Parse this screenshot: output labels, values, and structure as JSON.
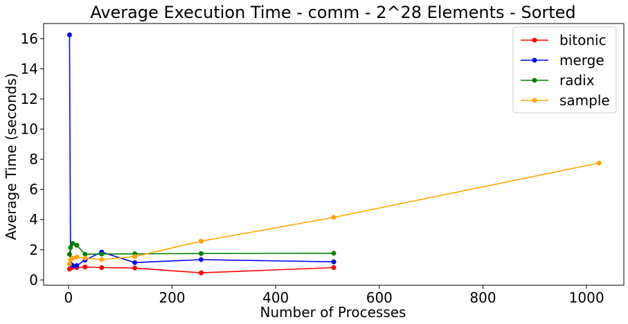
{
  "chart_data": {
    "type": "line",
    "title": "Average Execution Time - comm - 2^28 Elements - Sorted",
    "xlabel": "Number of Processes",
    "ylabel": "Average Time (seconds)",
    "xlim": [
      -48,
      1072
    ],
    "ylim": [
      -0.35,
      17.0
    ],
    "xticks": [
      0,
      200,
      400,
      600,
      800,
      1000
    ],
    "yticks": [
      0,
      2,
      4,
      6,
      8,
      10,
      12,
      14,
      16
    ],
    "legend_position": "top-right",
    "grid": false,
    "series": [
      {
        "name": "bitonic",
        "color": "#ff0000",
        "x": [
          2,
          4,
          8,
          16,
          32,
          64,
          128,
          256,
          512
        ],
        "y": [
          0.72,
          0.78,
          0.85,
          0.82,
          0.86,
          0.82,
          0.79,
          0.47,
          0.82
        ]
      },
      {
        "name": "merge",
        "color": "#0000ff",
        "x": [
          2,
          4,
          8,
          16,
          32,
          64,
          128,
          256,
          512
        ],
        "y": [
          16.25,
          1.05,
          0.95,
          0.95,
          1.32,
          1.85,
          1.15,
          1.35,
          1.2
        ]
      },
      {
        "name": "radix",
        "color": "#008000",
        "x": [
          2,
          4,
          8,
          16,
          32,
          64,
          128,
          256,
          512
        ],
        "y": [
          1.7,
          2.15,
          2.42,
          2.3,
          1.7,
          1.72,
          1.73,
          1.75,
          1.77
        ]
      },
      {
        "name": "sample",
        "color": "#ffa500",
        "x": [
          2,
          4,
          8,
          16,
          32,
          64,
          128,
          256,
          512,
          1024
        ],
        "y": [
          1.05,
          1.35,
          1.45,
          1.52,
          1.45,
          1.35,
          1.55,
          2.57,
          4.15,
          7.75
        ]
      }
    ]
  }
}
